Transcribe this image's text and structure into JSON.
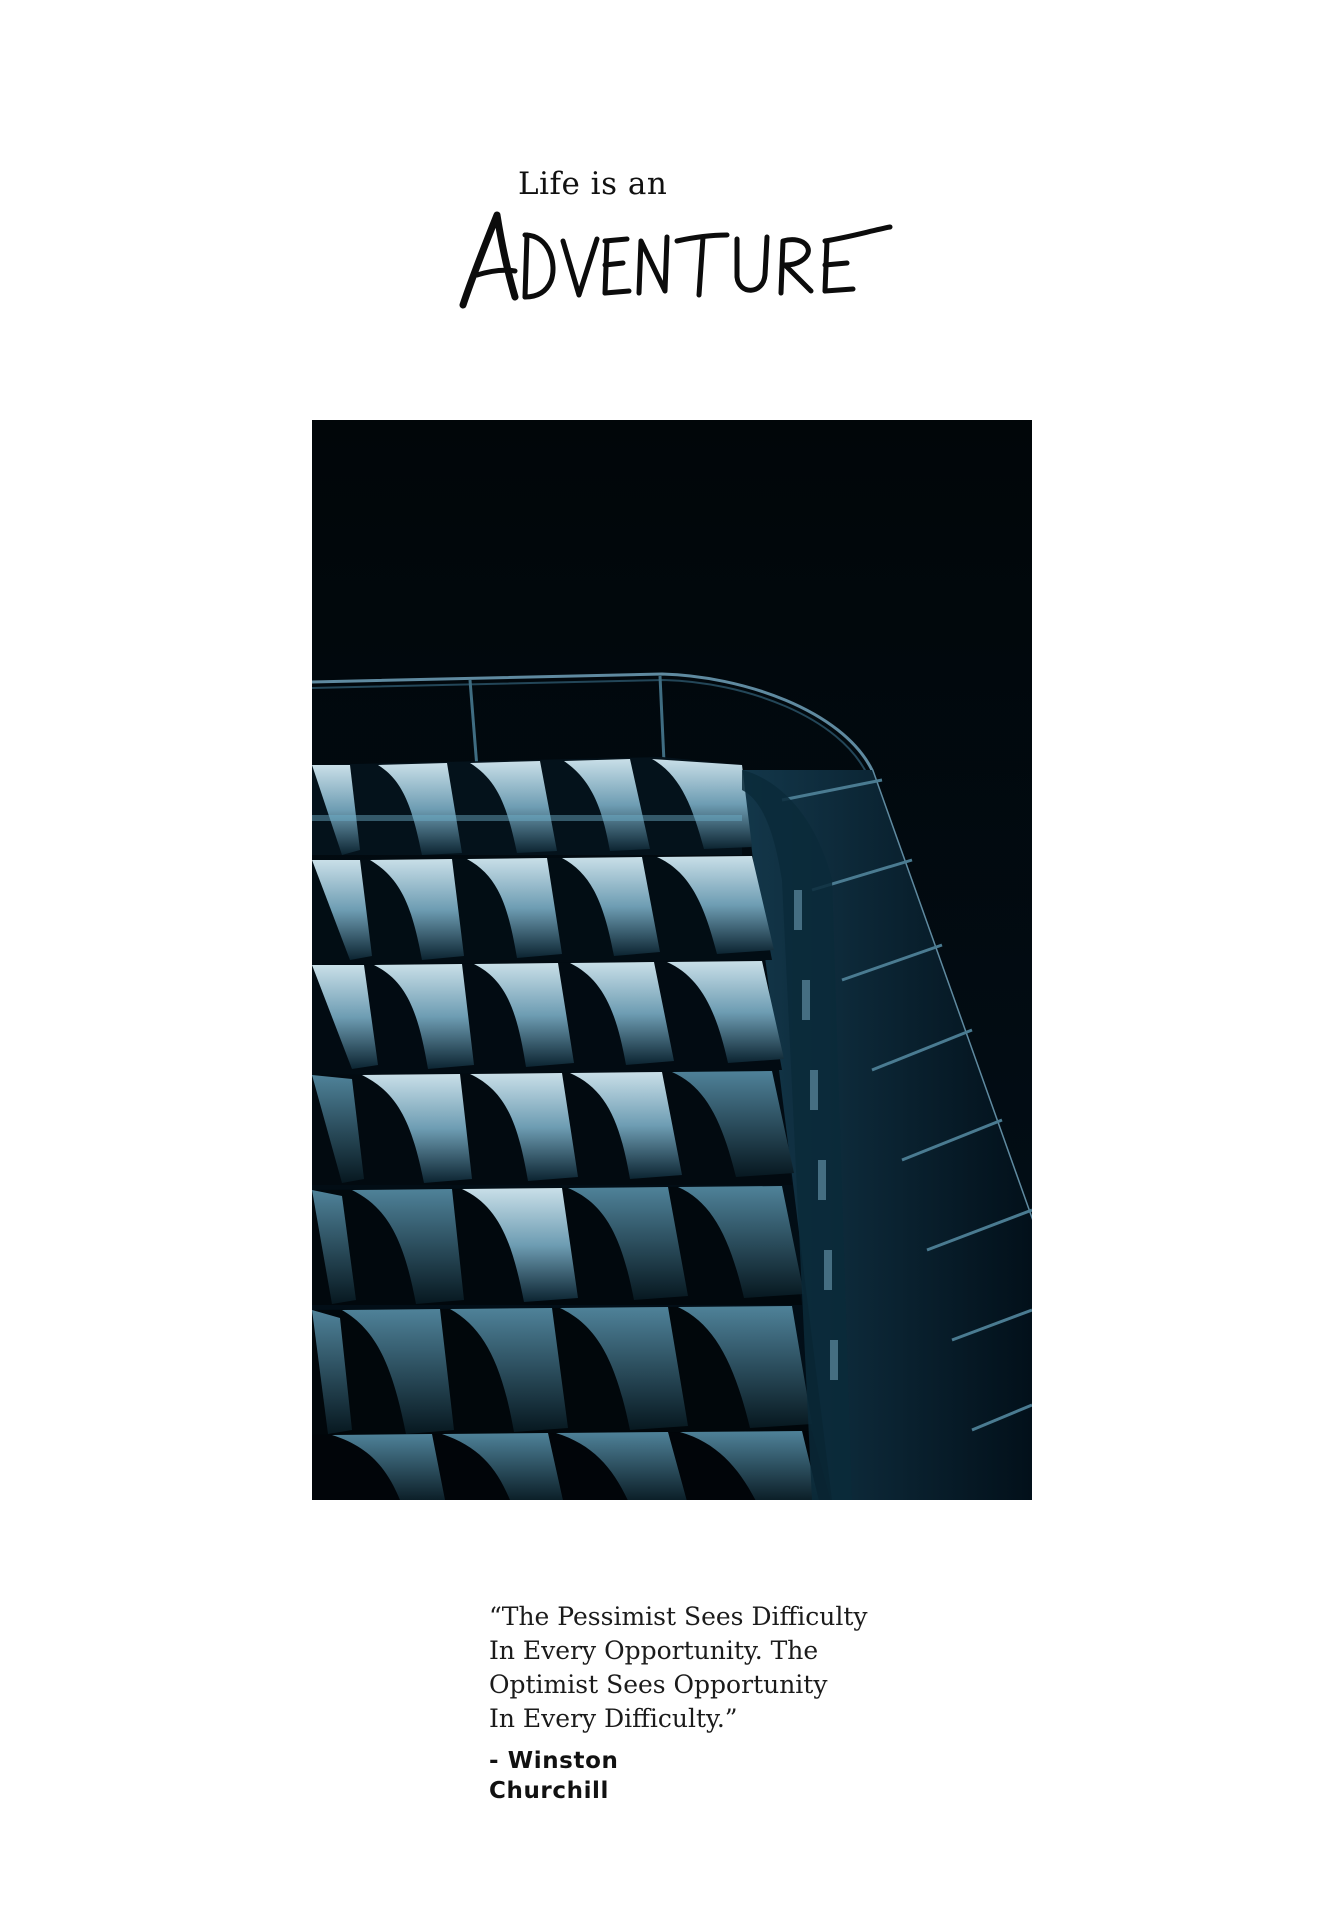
{
  "header": {
    "subtitle": "Life is an",
    "title": "Adventure"
  },
  "photo": {
    "description_icon": "building-facade-photo",
    "background_color": "#02070c",
    "accent_color": "#5f95ae"
  },
  "quote": {
    "lines": [
      "“The Pessimist Sees Difficulty",
      "In Every Opportunity. The",
      "Optimist Sees Opportunity",
      "In Every Difficulty.”"
    ],
    "author_lines": [
      "- Winston",
      "Churchill"
    ]
  }
}
